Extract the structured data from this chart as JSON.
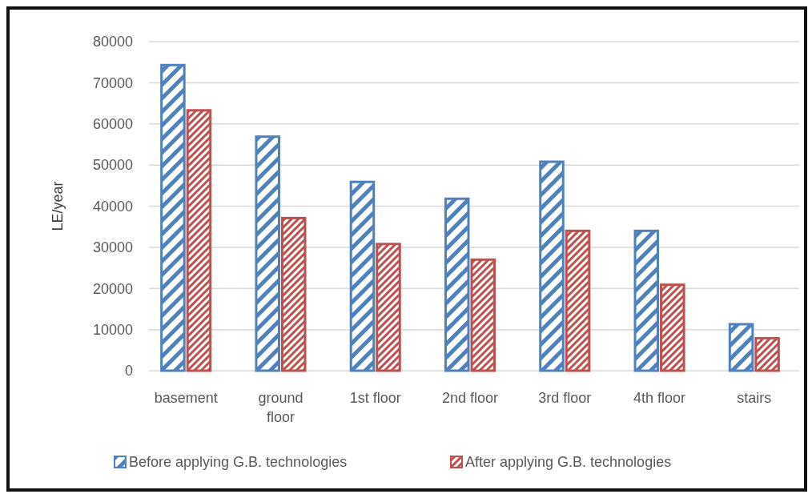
{
  "chart_data": {
    "type": "bar",
    "ylabel": "LE/year",
    "categories": [
      "basement",
      "ground floor",
      "1st floor",
      "2nd floor",
      "3rd floor",
      "4th floor",
      "stairs"
    ],
    "series": [
      {
        "name": "Before applying G.B. technologies",
        "color": "#4f81bd",
        "values": [
          74300,
          56900,
          45900,
          41800,
          50800,
          34000,
          11300
        ]
      },
      {
        "name": "After applying G.B. technologies",
        "color": "#c0504d",
        "values": [
          63300,
          37100,
          30800,
          27000,
          34000,
          20900,
          7900
        ]
      }
    ],
    "ylim": [
      0,
      80000
    ],
    "yticks": [
      0,
      10000,
      20000,
      30000,
      40000,
      50000,
      60000,
      70000,
      80000
    ],
    "grid": "y",
    "legend": "bottom"
  }
}
